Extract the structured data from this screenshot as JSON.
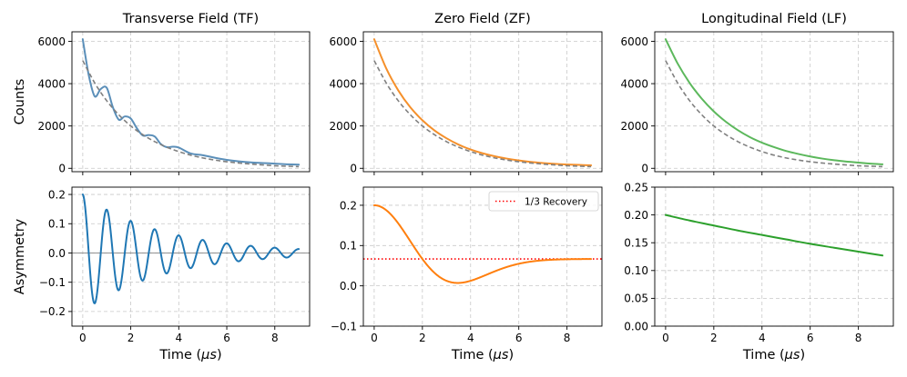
{
  "chart_data": [
    {
      "id": "tf_counts",
      "type": "line",
      "title": "Transverse Field (TF)",
      "xlabel": "",
      "ylabel": "Counts",
      "xlim": [
        -0.45,
        9.45
      ],
      "ylim": [
        -160,
        6450
      ],
      "xticks": [
        0,
        2,
        4,
        6,
        8
      ],
      "yticks": [
        0,
        2000,
        4000,
        6000
      ],
      "yticklabels": [
        "0",
        "2000",
        "4000",
        "6000"
      ],
      "grid": true,
      "series": [
        {
          "name": "Counts (TF)",
          "color": "#5b8fb9",
          "style": "solid",
          "x": [
            0,
            0.25,
            0.5,
            0.75,
            1,
            1.25,
            1.5,
            1.75,
            2,
            2.25,
            2.5,
            2.75,
            3,
            3.25,
            3.5,
            3.75,
            4,
            4.5,
            5,
            5.5,
            6,
            6.5,
            7,
            7.5,
            8,
            8.5,
            9
          ],
          "y": [
            6100,
            4400,
            3400,
            3750,
            3800,
            2900,
            2300,
            2450,
            2350,
            1900,
            1550,
            1570,
            1500,
            1150,
            1000,
            1020,
            980,
            700,
            620,
            500,
            400,
            330,
            280,
            250,
            220,
            190,
            170
          ]
        },
        {
          "name": "Exponential decay",
          "color": "#808080",
          "style": "dashed",
          "x": [
            0,
            0.5,
            1,
            1.5,
            2,
            2.5,
            3,
            3.5,
            4,
            4.5,
            5,
            5.5,
            6,
            6.5,
            7,
            7.5,
            8,
            8.5,
            9
          ],
          "y": [
            5090,
            4030,
            3190,
            2530,
            2000,
            1590,
            1260,
            1000,
            790,
            620,
            490,
            390,
            310,
            250,
            200,
            160,
            120,
            100,
            80
          ]
        }
      ]
    },
    {
      "id": "zf_counts",
      "type": "line",
      "title": "Zero Field (ZF)",
      "xlabel": "",
      "ylabel": "",
      "xlim": [
        -0.45,
        9.45
      ],
      "ylim": [
        -160,
        6450
      ],
      "xticks": [
        0,
        2,
        4,
        6,
        8
      ],
      "yticks": [
        0,
        2000,
        4000,
        6000
      ],
      "yticklabels": [
        "0",
        "2000",
        "4000",
        "6000"
      ],
      "grid": true,
      "series": [
        {
          "name": "Counts (ZF)",
          "color": "#f5902b",
          "style": "solid",
          "x": [
            0,
            0.5,
            1,
            1.5,
            2,
            2.5,
            3,
            3.5,
            4,
            4.5,
            5,
            5.5,
            6,
            6.5,
            7,
            7.5,
            8,
            8.5,
            9
          ],
          "y": [
            6100,
            4720,
            3680,
            2880,
            2270,
            1790,
            1420,
            1120,
            890,
            710,
            570,
            460,
            370,
            300,
            250,
            210,
            180,
            160,
            140
          ]
        },
        {
          "name": "Exponential decay",
          "color": "#808080",
          "style": "dashed",
          "x": [
            0,
            0.5,
            1,
            1.5,
            2,
            2.5,
            3,
            3.5,
            4,
            4.5,
            5,
            5.5,
            6,
            6.5,
            7,
            7.5,
            8,
            8.5,
            9
          ],
          "y": [
            5090,
            4030,
            3190,
            2530,
            2000,
            1590,
            1260,
            1000,
            790,
            620,
            490,
            390,
            310,
            250,
            200,
            160,
            120,
            100,
            80
          ]
        }
      ]
    },
    {
      "id": "lf_counts",
      "type": "line",
      "title": "Longitudinal Field (LF)",
      "xlabel": "",
      "ylabel": "",
      "xlim": [
        -0.45,
        9.45
      ],
      "ylim": [
        -160,
        6450
      ],
      "xticks": [
        0,
        2,
        4,
        6,
        8
      ],
      "yticks": [
        0,
        2000,
        4000,
        6000
      ],
      "yticklabels": [
        "0",
        "2000",
        "4000",
        "6000"
      ],
      "grid": true,
      "series": [
        {
          "name": "Counts (LF)",
          "color": "#5cb85c",
          "style": "solid",
          "x": [
            0,
            0.5,
            1,
            1.5,
            2,
            2.5,
            3,
            3.5,
            4,
            4.5,
            5,
            5.5,
            6,
            6.5,
            7,
            7.5,
            8,
            8.5,
            9
          ],
          "y": [
            6100,
            4950,
            4030,
            3290,
            2690,
            2200,
            1800,
            1470,
            1210,
            1000,
            820,
            680,
            560,
            460,
            380,
            320,
            270,
            220,
            190
          ]
        },
        {
          "name": "Exponential decay",
          "color": "#808080",
          "style": "dashed",
          "x": [
            0,
            0.5,
            1,
            1.5,
            2,
            2.5,
            3,
            3.5,
            4,
            4.5,
            5,
            5.5,
            6,
            6.5,
            7,
            7.5,
            8,
            8.5,
            9
          ],
          "y": [
            5090,
            4030,
            3190,
            2530,
            2000,
            1590,
            1260,
            1000,
            790,
            620,
            490,
            390,
            310,
            250,
            200,
            160,
            120,
            100,
            80
          ]
        }
      ]
    },
    {
      "id": "tf_asym",
      "type": "line",
      "title": "",
      "xlabel": "Time ($\\mu s$)",
      "ylabel": "Asymmetry",
      "xlim": [
        -0.45,
        9.45
      ],
      "ylim": [
        -0.25,
        0.225
      ],
      "xticks": [
        0,
        2,
        4,
        6,
        8
      ],
      "yticks": [
        -0.2,
        -0.1,
        0.0,
        0.1,
        0.2
      ],
      "yticklabels": [
        "−0.2",
        "−0.1",
        "0.0",
        "0.1",
        "0.2"
      ],
      "grid": true,
      "hline": {
        "y": 0,
        "color": "#808080",
        "style": "solid"
      },
      "series": [
        {
          "name": "Asymmetry (TF)",
          "color": "#1f77b4",
          "style": "solid",
          "function": "damped_cosine",
          "amplitude": 0.2,
          "frequency": 1.0,
          "damping": 0.3,
          "x_range": [
            0,
            9
          ],
          "y_samples": [
            0.2,
            -0.171,
            0.149,
            -0.128,
            0.11,
            -0.094,
            0.081,
            -0.069,
            0.059,
            -0.051,
            0.044,
            -0.038,
            0.032,
            -0.028,
            0.024,
            -0.02,
            0.018,
            -0.015,
            0.013
          ]
        }
      ]
    },
    {
      "id": "zf_asym",
      "type": "line",
      "title": "",
      "xlabel": "Time ($\\mu s$)",
      "ylabel": "",
      "xlim": [
        -0.45,
        9.45
      ],
      "ylim": [
        -0.1,
        0.245
      ],
      "xticks": [
        0,
        2,
        4,
        6,
        8
      ],
      "yticks": [
        -0.1,
        0.0,
        0.1,
        0.2
      ],
      "yticklabels": [
        "−0.1",
        "0.0",
        "0.1",
        "0.2"
      ],
      "grid": true,
      "legend": {
        "position": "top-right",
        "entries": [
          {
            "label": "1/3 Recovery",
            "color": "#ff0000",
            "style": "dotted"
          }
        ]
      },
      "hline": {
        "y": 0.0667,
        "color": "#ff0000",
        "style": "dotted"
      },
      "series": [
        {
          "name": "Asymmetry (ZF)",
          "color": "#ff7f0e",
          "style": "solid",
          "function": "kubo_toyabe",
          "amplitude": 0.2,
          "delta": 0.5,
          "x_range": [
            0,
            9
          ],
          "minimum": {
            "x": 3.46,
            "y": 0.0089
          }
        }
      ]
    },
    {
      "id": "lf_asym",
      "type": "line",
      "title": "",
      "xlabel": "Time ($\\mu s$)",
      "ylabel": "",
      "xlim": [
        -0.45,
        9.45
      ],
      "ylim": [
        0.0,
        0.25
      ],
      "xticks": [
        0,
        2,
        4,
        6,
        8
      ],
      "yticks": [
        0.0,
        0.05,
        0.1,
        0.15,
        0.2,
        0.25
      ],
      "yticklabels": [
        "0.00",
        "0.05",
        "0.10",
        "0.15",
        "0.20",
        "0.25"
      ],
      "grid": true,
      "series": [
        {
          "name": "Asymmetry (LF)",
          "color": "#2ca02c",
          "style": "solid",
          "x": [
            0,
            1,
            2,
            3,
            4,
            5,
            6,
            7,
            8,
            9
          ],
          "y": [
            0.2,
            0.19,
            0.181,
            0.172,
            0.164,
            0.156,
            0.148,
            0.141,
            0.134,
            0.127
          ]
        }
      ]
    }
  ]
}
